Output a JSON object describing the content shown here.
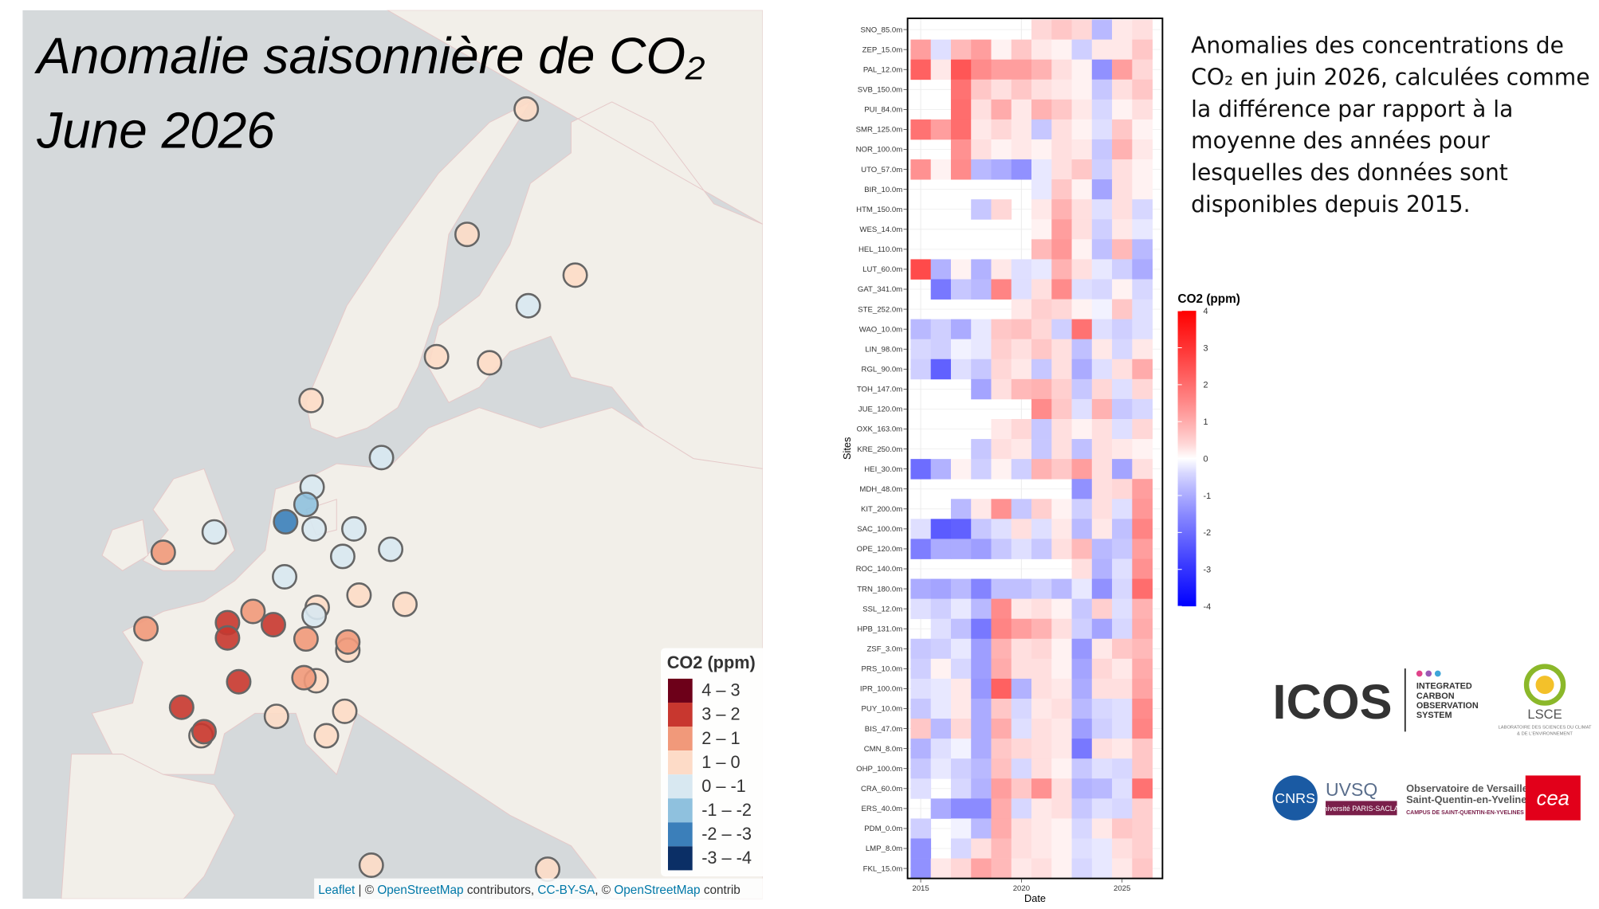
{
  "chart_data": [
    {
      "type": "map",
      "title": "Anomalie saisonnière de CO₂",
      "subtitle": "June 2026",
      "legend_title": "CO2 (ppm)",
      "classes": [
        {
          "range": [
            4,
            3
          ],
          "label": "4 – 3",
          "color": "#6d0019"
        },
        {
          "range": [
            3,
            2
          ],
          "label": "3 – 2",
          "color": "#c8372f"
        },
        {
          "range": [
            2,
            1
          ],
          "label": "2 – 1",
          "color": "#f1997a"
        },
        {
          "range": [
            1,
            0
          ],
          "label": "1 – 0",
          "color": "#fddbc7"
        },
        {
          "range": [
            0,
            -1
          ],
          "label": "0 – -1",
          "color": "#d8e8f1"
        },
        {
          "range": [
            -1,
            -2
          ],
          "label": "-1 – -2",
          "color": "#8fc1de"
        },
        {
          "range": [
            -2,
            -3
          ],
          "label": "-2 – -3",
          "color": "#3b7fba"
        },
        {
          "range": [
            -3,
            -4
          ],
          "label": "-3 – -4",
          "color": "#0b2f66"
        }
      ],
      "values": [
        0.5,
        0.5,
        0.7,
        -0.5,
        0.6,
        0.6,
        0.5,
        -0.5,
        -0.5,
        -1.5,
        -2.5,
        -0.5,
        -0.5,
        -0.5,
        1.5,
        -0.5,
        -0.5,
        -0.5,
        0.5,
        0.7,
        0.5,
        -0.5,
        1.5,
        2.5,
        2.5,
        1.5,
        2.5,
        1.5,
        0.5,
        1.5,
        0.5,
        1.5,
        2.5,
        2.5,
        0.5,
        0.6,
        0.5,
        2.5,
        0.5,
        0.5,
        0.5
      ],
      "attribution": [
        "Leaflet",
        " | © ",
        "OpenStreetMap",
        " contributors, ",
        "CC-BY-SA",
        ", © ",
        "OpenStreetMap",
        " contrib"
      ]
    },
    {
      "type": "heatmap",
      "x_label": "Date",
      "y_label": "Sites",
      "x": [
        2015,
        2016,
        2017,
        2018,
        2019,
        2020,
        2021,
        2022,
        2023,
        2024,
        2025,
        2026
      ],
      "xlim": [
        2014.5,
        2026.5
      ],
      "xticks": [
        2015,
        2020,
        2025
      ],
      "categories": [
        "SNO_85.0m",
        "ZEP_15.0m",
        "PAL_12.0m",
        "SVB_150.0m",
        "PUI_84.0m",
        "SMR_125.0m",
        "NOR_100.0m",
        "UTO_57.0m",
        "BIR_10.0m",
        "HTM_150.0m",
        "WES_14.0m",
        "HEL_110.0m",
        "LUT_60.0m",
        "GAT_341.0m",
        "STE_252.0m",
        "WAO_10.0m",
        "LIN_98.0m",
        "RGL_90.0m",
        "TOH_147.0m",
        "JUE_120.0m",
        "OXK_163.0m",
        "KRE_250.0m",
        "HEI_30.0m",
        "MDH_48.0m",
        "KIT_200.0m",
        "SAC_100.0m",
        "OPE_120.0m",
        "ROC_140.0m",
        "TRN_180.0m",
        "SSL_12.0m",
        "HPB_131.0m",
        "ZSF_3.0m",
        "PRS_10.0m",
        "IPR_100.0m",
        "PUY_10.0m",
        "BIS_47.0m",
        "CMN_8.0m",
        "OHP_100.0m",
        "CRA_60.0m",
        "ERS_40.0m",
        "PDM_0.0m",
        "LMP_8.0m",
        "FKL_15.0m"
      ],
      "values": [
        [
          null,
          null,
          null,
          null,
          null,
          null,
          0.4,
          0.6,
          0.4,
          -0.8,
          0.2,
          0.3
        ],
        [
          1.2,
          -0.3,
          0.8,
          1.2,
          0.1,
          0.6,
          0.2,
          0.1,
          -0.5,
          0.2,
          0.2,
          0.6
        ],
        [
          2.2,
          0.2,
          2.4,
          1.5,
          1.2,
          1.2,
          0.9,
          0.3,
          0.1,
          -1.4,
          1.2,
          0.4
        ],
        [
          null,
          null,
          1.9,
          0.6,
          0.3,
          0.6,
          0.3,
          0.2,
          0.1,
          -0.6,
          0.3,
          0.6
        ],
        [
          null,
          null,
          2.0,
          0.3,
          1.0,
          0.2,
          0.9,
          0.6,
          0.2,
          -0.4,
          0.1,
          0.3
        ],
        [
          1.9,
          1.2,
          2.0,
          0.2,
          0.4,
          0.2,
          -0.6,
          0.3,
          0.1,
          -0.3,
          0.6,
          0.1
        ],
        [
          null,
          null,
          1.4,
          0.3,
          0.1,
          0.2,
          0.1,
          0.3,
          0.2,
          -0.6,
          0.9,
          0.2
        ],
        [
          1.4,
          0.1,
          1.5,
          -0.8,
          -1.0,
          -1.4,
          -0.2,
          0.3,
          0.6,
          -0.5,
          0.3,
          0.1
        ],
        [
          null,
          null,
          null,
          null,
          null,
          null,
          -0.2,
          0.6,
          0.1,
          -1.1,
          0.3,
          0.1
        ],
        [
          null,
          null,
          null,
          -0.6,
          0.4,
          null,
          0.2,
          0.9,
          0.3,
          -0.3,
          0.3,
          -0.4
        ],
        [
          null,
          null,
          null,
          null,
          null,
          null,
          0.1,
          1.2,
          0.3,
          -0.5,
          0.2,
          -0.2
        ],
        [
          null,
          null,
          null,
          null,
          null,
          null,
          0.8,
          1.3,
          0.1,
          -0.7,
          0.8,
          -0.8
        ],
        [
          2.6,
          -0.9,
          0.1,
          -0.9,
          0.2,
          -0.3,
          -0.2,
          0.9,
          0.3,
          -0.2,
          -0.5,
          -1.0
        ],
        [
          null,
          -1.8,
          -0.6,
          -0.8,
          1.6,
          -0.3,
          0.3,
          1.5,
          -0.3,
          -0.4,
          0.1,
          -0.4
        ],
        [
          null,
          null,
          null,
          null,
          null,
          0.2,
          0.5,
          0.4,
          0.1,
          -0.1,
          0.6,
          -0.3
        ],
        [
          -0.8,
          -0.5,
          -1.0,
          -0.2,
          0.6,
          0.7,
          0.4,
          -0.5,
          1.9,
          -0.3,
          -0.5,
          -0.3
        ],
        [
          -0.4,
          -0.5,
          -0.1,
          -0.2,
          0.5,
          0.3,
          0.6,
          0.3,
          -0.7,
          0.2,
          -0.4,
          0.2
        ],
        [
          -0.5,
          -2.2,
          -0.3,
          -0.6,
          0.4,
          0.2,
          -0.6,
          0.3,
          -1.0,
          -0.3,
          0.3,
          1.0
        ],
        [
          null,
          null,
          null,
          -1.1,
          0.3,
          0.8,
          0.9,
          0.5,
          -0.6,
          0.4,
          -0.3,
          0.4
        ],
        [
          null,
          null,
          null,
          null,
          null,
          null,
          1.5,
          0.6,
          -0.3,
          0.9,
          -0.6,
          -0.4
        ],
        [
          null,
          null,
          null,
          null,
          0.2,
          0.4,
          -0.6,
          0.3,
          0.1,
          0.3,
          -0.3,
          0.4
        ],
        [
          null,
          null,
          null,
          -0.6,
          0.3,
          0.2,
          -0.6,
          0.3,
          -0.7,
          0.3,
          0.2,
          0.1
        ],
        [
          -2.0,
          -0.9,
          0.1,
          -0.5,
          0.1,
          -0.5,
          0.9,
          0.6,
          1.2,
          0.3,
          -1.1,
          0.3
        ],
        [
          null,
          null,
          null,
          null,
          null,
          null,
          null,
          null,
          -1.4,
          0.3,
          0.4,
          1.2
        ],
        [
          null,
          null,
          -0.8,
          0.2,
          1.4,
          -0.6,
          0.5,
          0.1,
          -0.5,
          0.3,
          -0.3,
          1.3
        ],
        [
          -0.3,
          -2.3,
          -2.2,
          -0.6,
          -0.3,
          0.3,
          -0.3,
          0.2,
          -0.8,
          0.2,
          -0.7,
          1.6
        ],
        [
          -1.7,
          -1.0,
          -1.0,
          -1.2,
          -0.6,
          -0.3,
          -0.6,
          0.3,
          0.8,
          -0.8,
          -0.6,
          1.2
        ],
        [
          null,
          null,
          null,
          null,
          null,
          null,
          null,
          null,
          0.3,
          -0.9,
          -0.3,
          1.4
        ],
        [
          -1.0,
          -1.1,
          -0.8,
          -1.6,
          -0.7,
          -0.7,
          -0.5,
          -0.8,
          -0.2,
          -1.4,
          -0.4,
          2.0
        ],
        [
          -0.3,
          -0.5,
          -0.2,
          -0.8,
          1.5,
          0.2,
          0.3,
          0.1,
          -0.6,
          0.5,
          -0.3,
          0.9
        ],
        [
          null,
          -0.3,
          -0.7,
          -1.8,
          1.6,
          1.2,
          0.9,
          0.3,
          -0.5,
          -1.1,
          -0.4,
          1.0
        ],
        [
          -0.6,
          -0.5,
          -0.2,
          -1.2,
          0.9,
          0.3,
          0.4,
          0.1,
          -1.3,
          0.2,
          0.6,
          0.8
        ],
        [
          -0.5,
          0.1,
          -0.4,
          -1.2,
          1.0,
          0.3,
          0.3,
          0.1,
          -1.1,
          0.4,
          0.2,
          1.0
        ],
        [
          -0.3,
          -0.2,
          0.2,
          -1.3,
          2.2,
          -0.9,
          0.3,
          0.2,
          -1.0,
          0.3,
          0.3,
          1.1
        ],
        [
          -0.6,
          -0.2,
          0.2,
          -1.0,
          0.6,
          -0.4,
          0.2,
          0.3,
          -0.8,
          -0.4,
          -0.3,
          1.5
        ],
        [
          0.6,
          -0.8,
          0.4,
          -1.0,
          1.0,
          -0.3,
          0.3,
          0.2,
          -1.2,
          -0.5,
          -0.3,
          1.6
        ],
        [
          -0.9,
          -0.3,
          -0.1,
          -1.0,
          0.6,
          0.4,
          0.3,
          0.2,
          -1.8,
          0.3,
          0.2,
          0.6
        ],
        [
          -0.6,
          -0.2,
          -0.5,
          -0.8,
          0.7,
          -0.4,
          0.3,
          0.1,
          -0.6,
          -0.3,
          -0.4,
          0.6
        ],
        [
          -0.3,
          null,
          -0.4,
          -0.9,
          1.2,
          0.6,
          1.4,
          0.3,
          -0.9,
          -0.8,
          -0.3,
          1.9
        ],
        [
          null,
          -1.0,
          -1.5,
          -1.5,
          1.0,
          -0.4,
          0.2,
          0.3,
          -0.6,
          -0.3,
          -0.4,
          0.5
        ],
        [
          -0.5,
          null,
          -0.1,
          -0.8,
          1.0,
          0.3,
          0.2,
          0.1,
          -0.4,
          0.2,
          0.6,
          0.5
        ],
        [
          -1.4,
          null,
          -0.4,
          0.3,
          0.8,
          0.3,
          0.2,
          0.1,
          -0.3,
          -0.2,
          0.3,
          0.5
        ],
        [
          -1.4,
          0.2,
          0.4,
          1.1,
          0.8,
          0.2,
          0.3,
          0.1,
          -0.4,
          -0.2,
          0.2,
          0.6
        ]
      ],
      "colorbar": {
        "title": "CO2 (ppm)",
        "lim": [
          -4,
          4
        ],
        "ticks": [
          4,
          3,
          2,
          1,
          0,
          -1,
          -2,
          -3,
          -4
        ],
        "low_color": "#0000ff",
        "mid_color": "#ffffff",
        "high_color": "#ff0000"
      }
    }
  ],
  "description": [
    "Anomalies des concentrations de",
    "CO₂ en juin 2026, calculées comme",
    "la différence par rapport à la",
    "moyenne des années pour",
    "lesquelles des données sont",
    "disponibles depuis 2015."
  ],
  "logos": {
    "icos": "ICOS",
    "icos_lines": [
      "INTEGRATED",
      "CARBON",
      "OBSERVATION",
      "SYSTEM"
    ],
    "lsce": "LSCE",
    "lsce_lines": [
      "LABORATOIRE DES SCIENCES DU CLIMAT",
      "& DE L'ENVIRONNEMENT"
    ],
    "cnrs": "CNRS",
    "uvsq": "UVSQ",
    "saclay": "université PARIS-SACLAY",
    "ovsq_lines": [
      "Observatoire de Versailles",
      "Saint-Quentin-en-Yvelines",
      "CAMPUS DE SAINT-QUENTIN-EN-YVELINES"
    ],
    "cea": "cea"
  }
}
